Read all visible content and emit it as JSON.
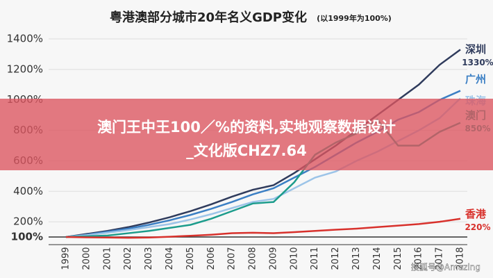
{
  "chart_data": {
    "type": "line",
    "title": "粤港澳部分城市20年名义GDP变化",
    "subtitle": "(以1999年为100%)",
    "categories": [
      "1999",
      "2000",
      "2001",
      "2002",
      "2003",
      "2004",
      "2005",
      "2006",
      "2007",
      "2008",
      "2009",
      "2010",
      "2011",
      "2012",
      "2013",
      "2014",
      "2015",
      "2016",
      "2017",
      "2018"
    ],
    "ylim": [
      50,
      1400
    ],
    "yticks": [
      {
        "value": 100,
        "label": "100%"
      },
      {
        "value": 200,
        "label": "200%"
      },
      {
        "value": 400,
        "label": "400%"
      },
      {
        "value": 600,
        "label": "600%"
      },
      {
        "value": 800,
        "label": "800%"
      },
      {
        "value": 1000,
        "label": "1000%"
      },
      {
        "value": 1200,
        "label": "1200%"
      },
      {
        "value": 1400,
        "label": "1400%"
      }
    ],
    "grid": true,
    "series": [
      {
        "name": "深圳",
        "color": "#2f3b5c",
        "values": [
          100,
          120,
          140,
          165,
          195,
          230,
          270,
          315,
          365,
          410,
          440,
          520,
          610,
          700,
          800,
          900,
          1000,
          1100,
          1230,
          1330
        ],
        "value_labels": [
          null,
          null,
          null,
          null,
          null,
          null,
          null,
          null,
          null,
          null,
          null,
          null,
          null,
          null,
          null,
          null,
          null,
          null,
          null,
          "1330%"
        ]
      },
      {
        "name": "广州",
        "color": "#3b7fc4",
        "values": [
          100,
          115,
          135,
          155,
          180,
          210,
          245,
          285,
          330,
          380,
          420,
          490,
          560,
          640,
          720,
          790,
          870,
          920,
          1000,
          1060
        ]
      },
      {
        "name": "珠海",
        "color": "#9cc4e8",
        "values": [
          100,
          112,
          128,
          145,
          165,
          185,
          215,
          250,
          290,
          330,
          350,
          420,
          490,
          530,
          600,
          660,
          730,
          800,
          880,
          1010
        ]
      },
      {
        "name": "澳门",
        "color": "#1c9c8c",
        "values": [
          100,
          105,
          110,
          125,
          140,
          160,
          180,
          220,
          270,
          320,
          330,
          460,
          640,
          720,
          780,
          870,
          700,
          700,
          790,
          850
        ],
        "value_labels": [
          null,
          null,
          null,
          null,
          null,
          null,
          null,
          null,
          null,
          null,
          null,
          null,
          null,
          null,
          null,
          null,
          null,
          null,
          null,
          "850%"
        ]
      },
      {
        "name": "香港",
        "color": "#d8312c",
        "values": [
          100,
          98,
          97,
          95,
          97,
          102,
          108,
          115,
          125,
          128,
          125,
          132,
          140,
          148,
          155,
          165,
          175,
          185,
          200,
          220
        ],
        "value_labels": [
          null,
          null,
          null,
          null,
          null,
          null,
          null,
          null,
          null,
          null,
          null,
          null,
          null,
          null,
          null,
          null,
          null,
          null,
          null,
          "220%"
        ]
      }
    ]
  },
  "overlay": {
    "line1": "澳门王中王100／%的资料,实地观察数据设计",
    "line2": "_文化版CHZ7.64"
  },
  "watermark": "搜狐号@Amazing"
}
